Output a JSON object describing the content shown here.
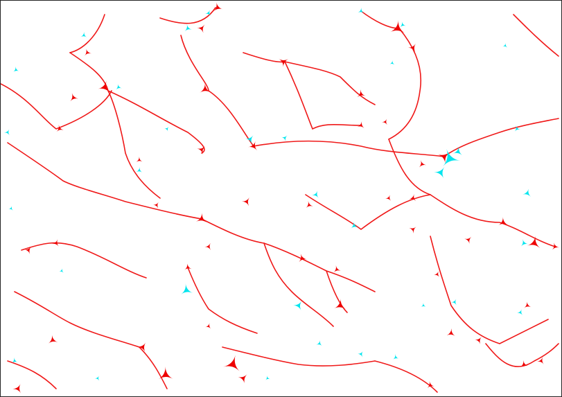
{
  "image": {
    "description_free": true,
    "colors": {
      "background": "#ffffff",
      "primary": "#ee0000",
      "secondary": "#00e5ee",
      "border": "#222222"
    }
  }
}
